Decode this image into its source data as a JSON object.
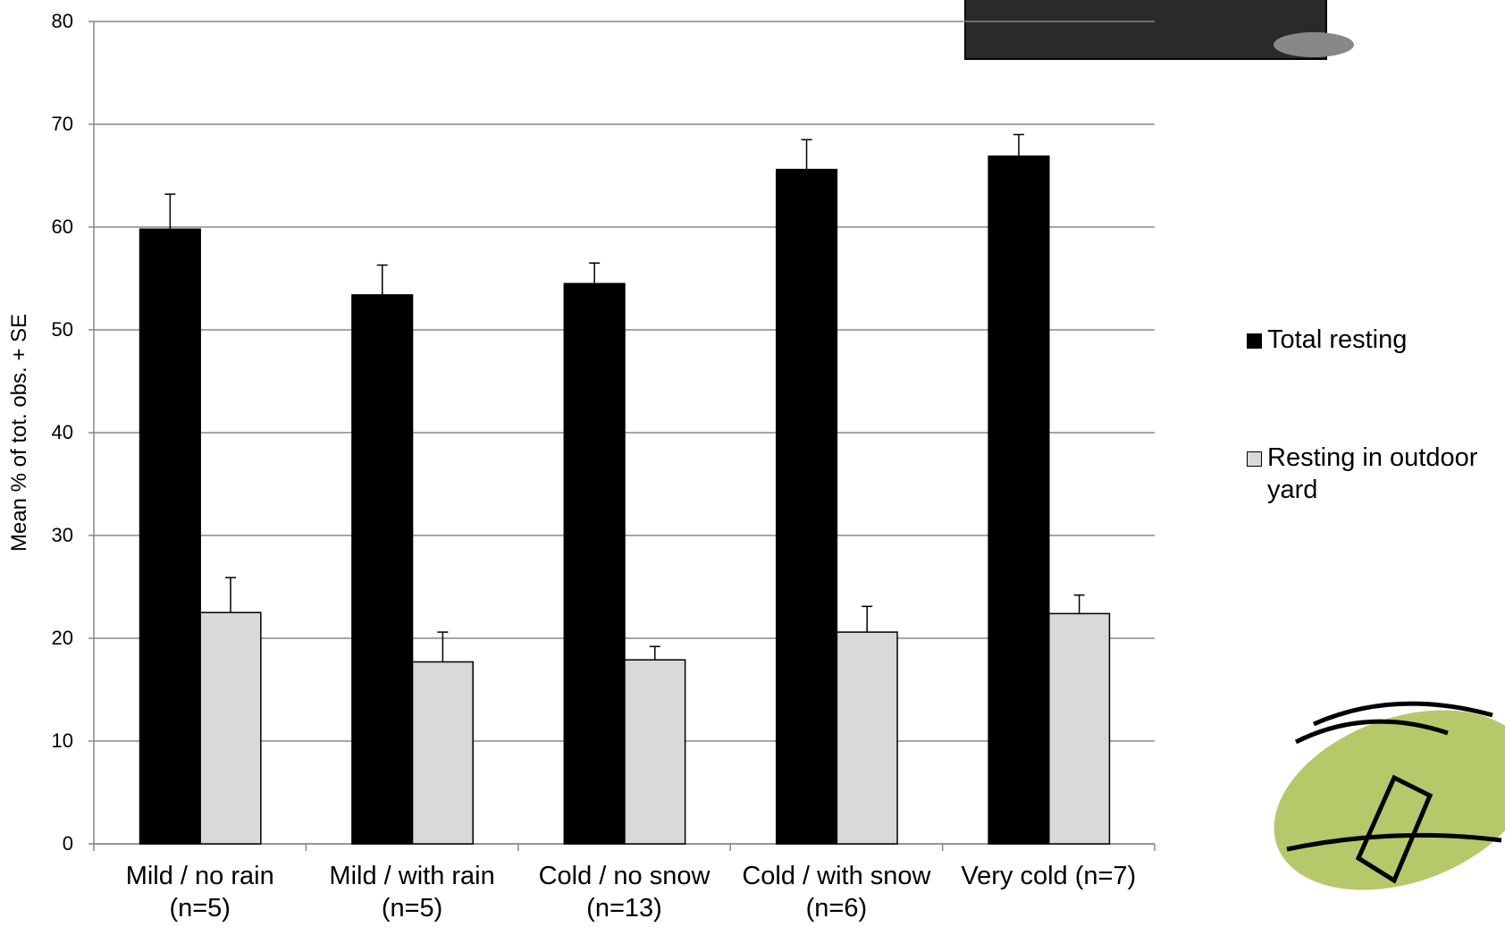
{
  "chart_data": {
    "type": "bar",
    "y_label": "Mean % of tot. obs. + SE",
    "categories": [
      [
        "Mild / no rain",
        "(n=5)"
      ],
      [
        "Mild / with rain",
        "(n=5)"
      ],
      [
        "Cold / no snow",
        "(n=13)"
      ],
      [
        "Cold / with snow",
        "(n=6)"
      ],
      [
        "Very cold (n=7)"
      ]
    ],
    "series": [
      {
        "name": "Total resting",
        "color": "#000000",
        "values": [
          59.8,
          53.4,
          54.5,
          65.6,
          66.9
        ],
        "error": [
          3.4,
          2.9,
          2.0,
          2.9,
          2.1
        ]
      },
      {
        "name": "Resting in outdoor yard",
        "color": "#d9d9d9",
        "values": [
          22.5,
          17.7,
          17.9,
          20.6,
          22.4
        ],
        "error": [
          3.4,
          2.9,
          1.3,
          2.5,
          1.8
        ]
      }
    ],
    "ylim": [
      0,
      80
    ],
    "yticks": [
      0,
      10,
      20,
      30,
      40,
      50,
      60,
      70,
      80
    ],
    "grid": true,
    "legend": "right"
  }
}
